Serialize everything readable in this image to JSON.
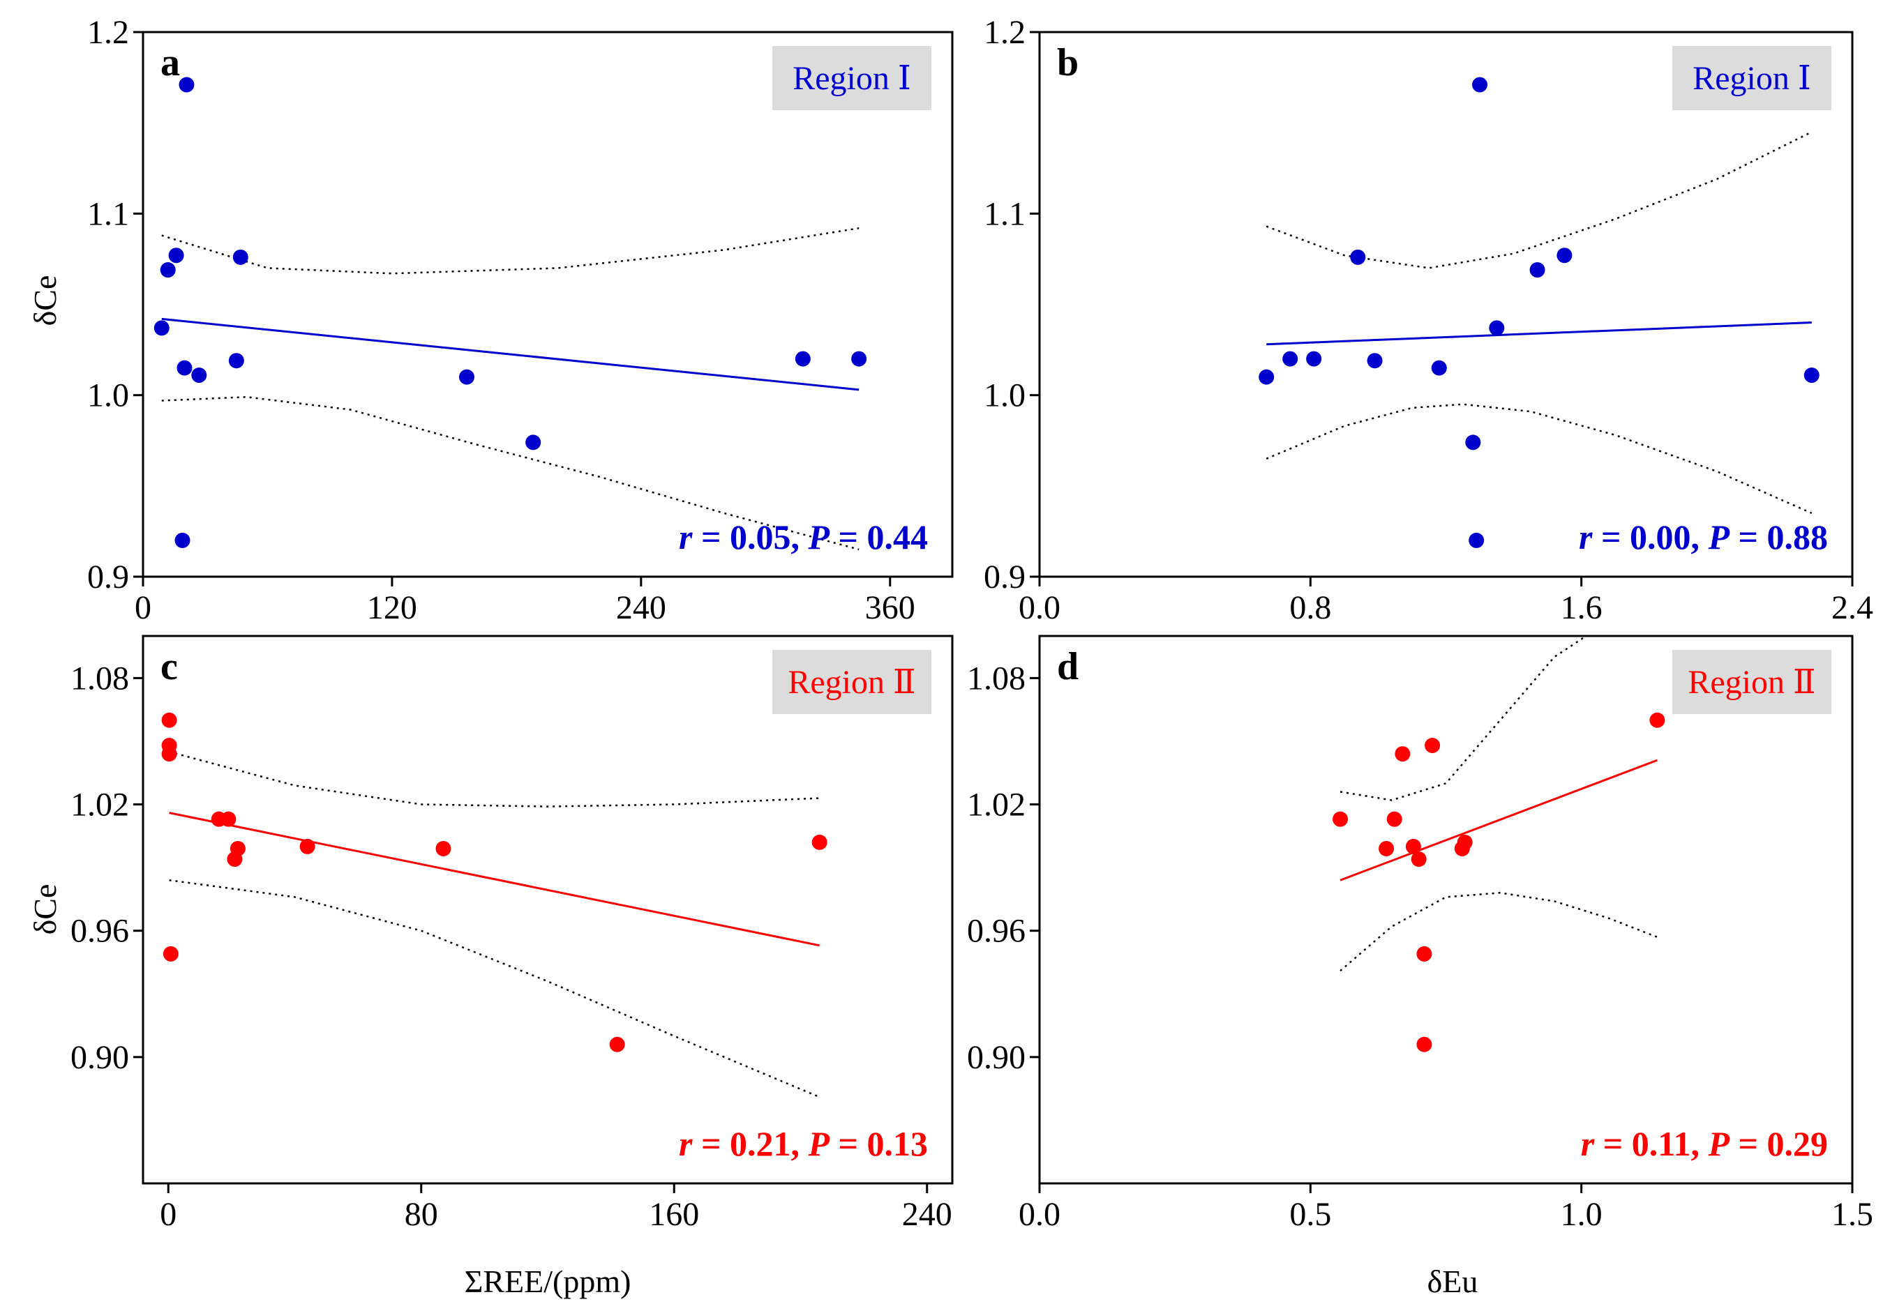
{
  "figure": {
    "xlabel_left": "ΣREE/(ppm)",
    "xlabel_right": "δEu",
    "ylabel_top": "δCe",
    "ylabel_bottom": "δCe"
  },
  "chart_data": [
    {
      "type": "scatter",
      "panel": "a",
      "region_label": "Region Ⅰ",
      "region_color": "#0000cc",
      "label_bg": "#dcdcdc",
      "stat_parts": [
        "r",
        " = 0.05, ",
        "P",
        " = 0.44"
      ],
      "xlim": [
        0,
        390
      ],
      "ylim": [
        0.9,
        1.2
      ],
      "xticks": [
        0,
        120,
        240,
        360
      ],
      "xtick_labels": [
        "0",
        "120",
        "240",
        "360"
      ],
      "yticks": [
        0.9,
        1.0,
        1.1,
        1.2
      ],
      "ytick_labels": [
        "0.9",
        "1.0",
        "1.1",
        "1.2"
      ],
      "grid": false,
      "points": [
        [
          9,
          1.037
        ],
        [
          12,
          1.069
        ],
        [
          16,
          1.077
        ],
        [
          19,
          0.92
        ],
        [
          20,
          1.015
        ],
        [
          21,
          1.171
        ],
        [
          27,
          1.011
        ],
        [
          45,
          1.019
        ],
        [
          47,
          1.076
        ],
        [
          156,
          1.01
        ],
        [
          188,
          0.974
        ],
        [
          318,
          1.02
        ],
        [
          345,
          1.02
        ]
      ],
      "fit": [
        [
          9,
          1.042
        ],
        [
          345,
          1.003
        ]
      ],
      "ci_upper": [
        [
          9,
          1.088
        ],
        [
          60,
          1.07
        ],
        [
          120,
          1.067
        ],
        [
          200,
          1.07
        ],
        [
          280,
          1.08
        ],
        [
          345,
          1.092
        ]
      ],
      "ci_lower": [
        [
          9,
          0.997
        ],
        [
          50,
          0.999
        ],
        [
          100,
          0.992
        ],
        [
          160,
          0.973
        ],
        [
          220,
          0.955
        ],
        [
          280,
          0.935
        ],
        [
          345,
          0.915
        ]
      ]
    },
    {
      "type": "scatter",
      "panel": "b",
      "region_label": "Region Ⅰ",
      "region_color": "#0000cc",
      "label_bg": "#dcdcdc",
      "stat_parts": [
        "r",
        " = 0.00, ",
        "P",
        " = 0.88"
      ],
      "xlim": [
        0,
        2.4
      ],
      "ylim": [
        0.9,
        1.2
      ],
      "xticks": [
        0,
        0.8,
        1.6,
        2.4
      ],
      "xtick_labels": [
        "0.0",
        "0.8",
        "1.6",
        "2.4"
      ],
      "yticks": [
        0.9,
        1.0,
        1.1,
        1.2
      ],
      "ytick_labels": [
        "0.9",
        "1.0",
        "1.1",
        "1.2"
      ],
      "grid": false,
      "points": [
        [
          0.67,
          1.01
        ],
        [
          0.74,
          1.02
        ],
        [
          0.81,
          1.02
        ],
        [
          0.94,
          1.076
        ],
        [
          0.99,
          1.019
        ],
        [
          1.18,
          1.015
        ],
        [
          1.28,
          0.974
        ],
        [
          1.29,
          0.92
        ],
        [
          1.3,
          1.171
        ],
        [
          1.35,
          1.037
        ],
        [
          1.47,
          1.069
        ],
        [
          1.55,
          1.077
        ],
        [
          2.28,
          1.011
        ]
      ],
      "fit": [
        [
          0.67,
          1.028
        ],
        [
          2.28,
          1.04
        ]
      ],
      "ci_upper": [
        [
          0.67,
          1.093
        ],
        [
          0.9,
          1.077
        ],
        [
          1.15,
          1.07
        ],
        [
          1.4,
          1.078
        ],
        [
          1.7,
          1.097
        ],
        [
          2.0,
          1.119
        ],
        [
          2.28,
          1.145
        ]
      ],
      "ci_lower": [
        [
          0.67,
          0.965
        ],
        [
          0.9,
          0.983
        ],
        [
          1.1,
          0.993
        ],
        [
          1.25,
          0.995
        ],
        [
          1.45,
          0.991
        ],
        [
          1.7,
          0.978
        ],
        [
          2.0,
          0.958
        ],
        [
          2.28,
          0.935
        ]
      ]
    },
    {
      "type": "scatter",
      "panel": "c",
      "region_label": "Region Ⅱ",
      "region_color": "#ff0000",
      "label_bg": "#dcdcdc",
      "stat_parts": [
        "r",
        " = 0.21, ",
        "P",
        " = 0.13"
      ],
      "xlim": [
        -8,
        248
      ],
      "ylim": [
        0.84,
        1.1
      ],
      "xticks": [
        0,
        80,
        160,
        240
      ],
      "xtick_labels": [
        "0",
        "80",
        "160",
        "240"
      ],
      "yticks": [
        0.9,
        0.96,
        1.02,
        1.08
      ],
      "ytick_labels": [
        "0.90",
        "0.96",
        "1.02",
        "1.08"
      ],
      "grid": false,
      "points": [
        [
          0.3,
          1.06
        ],
        [
          0.3,
          1.044
        ],
        [
          0.3,
          1.048
        ],
        [
          0.8,
          0.949
        ],
        [
          16,
          1.013
        ],
        [
          19,
          1.013
        ],
        [
          21,
          0.994
        ],
        [
          22,
          0.999
        ],
        [
          44,
          1.0
        ],
        [
          87,
          0.999
        ],
        [
          142,
          0.906
        ],
        [
          206,
          1.002
        ]
      ],
      "fit": [
        [
          0.3,
          1.016
        ],
        [
          206,
          0.953
        ]
      ],
      "ci_upper": [
        [
          0.3,
          1.045
        ],
        [
          40,
          1.029
        ],
        [
          80,
          1.02
        ],
        [
          120,
          1.019
        ],
        [
          160,
          1.02
        ],
        [
          206,
          1.023
        ]
      ],
      "ci_lower": [
        [
          0.3,
          0.984
        ],
        [
          40,
          0.976
        ],
        [
          80,
          0.96
        ],
        [
          120,
          0.936
        ],
        [
          160,
          0.91
        ],
        [
          206,
          0.881
        ]
      ]
    },
    {
      "type": "scatter",
      "panel": "d",
      "region_label": "Region Ⅱ",
      "region_color": "#ff0000",
      "label_bg": "#dcdcdc",
      "stat_parts": [
        "r",
        " = 0.11, ",
        "P",
        " = 0.29"
      ],
      "xlim": [
        0,
        1.5
      ],
      "ylim": [
        0.84,
        1.1
      ],
      "xticks": [
        0,
        0.5,
        1.0,
        1.5
      ],
      "xtick_labels": [
        "0.0",
        "0.5",
        "1.0",
        "1.5"
      ],
      "yticks": [
        0.9,
        0.96,
        1.02,
        1.08
      ],
      "ytick_labels": [
        "0.90",
        "0.96",
        "1.02",
        "1.08"
      ],
      "grid": false,
      "points": [
        [
          0.555,
          1.013
        ],
        [
          0.64,
          0.999
        ],
        [
          0.655,
          1.013
        ],
        [
          0.67,
          1.044
        ],
        [
          0.69,
          1.0
        ],
        [
          0.7,
          0.994
        ],
        [
          0.71,
          0.949
        ],
        [
          0.71,
          0.906
        ],
        [
          0.725,
          1.048
        ],
        [
          0.78,
          0.999
        ],
        [
          0.785,
          1.002
        ],
        [
          1.14,
          1.06
        ]
      ],
      "fit": [
        [
          0.555,
          0.984
        ],
        [
          1.14,
          1.041
        ]
      ],
      "ci_upper": [
        [
          0.555,
          1.026
        ],
        [
          0.65,
          1.022
        ],
        [
          0.75,
          1.03
        ],
        [
          0.85,
          1.06
        ],
        [
          0.95,
          1.09
        ],
        [
          1.05,
          1.107
        ],
        [
          1.1,
          1.114
        ]
      ],
      "ci_lower": [
        [
          0.555,
          0.941
        ],
        [
          0.65,
          0.962
        ],
        [
          0.75,
          0.976
        ],
        [
          0.85,
          0.978
        ],
        [
          0.95,
          0.974
        ],
        [
          1.05,
          0.966
        ],
        [
          1.14,
          0.957
        ]
      ]
    }
  ]
}
